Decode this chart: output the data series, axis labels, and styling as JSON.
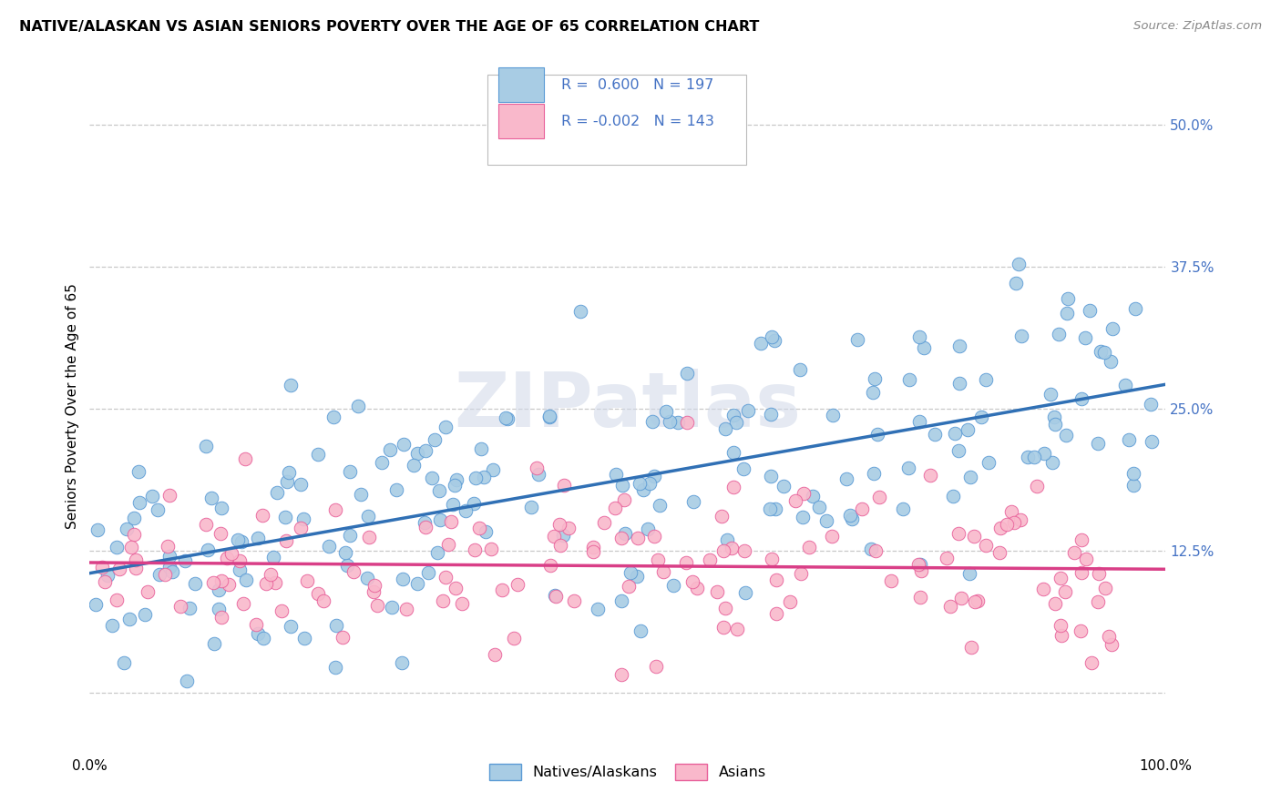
{
  "title": "NATIVE/ALASKAN VS ASIAN SENIORS POVERTY OVER THE AGE OF 65 CORRELATION CHART",
  "source": "Source: ZipAtlas.com",
  "ylabel": "Seniors Poverty Over the Age of 65",
  "blue_R": 0.6,
  "blue_N": 197,
  "pink_R": -0.002,
  "pink_N": 143,
  "xlim": [
    0.0,
    1.0
  ],
  "ylim": [
    -0.055,
    0.56
  ],
  "yticks": [
    0.0,
    0.125,
    0.25,
    0.375,
    0.5
  ],
  "blue_color": "#a8cce4",
  "pink_color": "#f9b8cb",
  "blue_edge_color": "#5b9bd5",
  "pink_edge_color": "#e8609a",
  "blue_line_color": "#3070b5",
  "pink_line_color": "#d93f87",
  "grid_color": "#c8c8c8",
  "background_color": "#ffffff",
  "text_color_blue": "#4472c4",
  "watermark": "ZIPatlas",
  "legend_blue_label": "Natives/Alaskans",
  "legend_pink_label": "Asians",
  "title_fontsize": 11.5,
  "source_fontsize": 9.5,
  "axis_fontsize": 11,
  "legend_fontsize": 11.5
}
